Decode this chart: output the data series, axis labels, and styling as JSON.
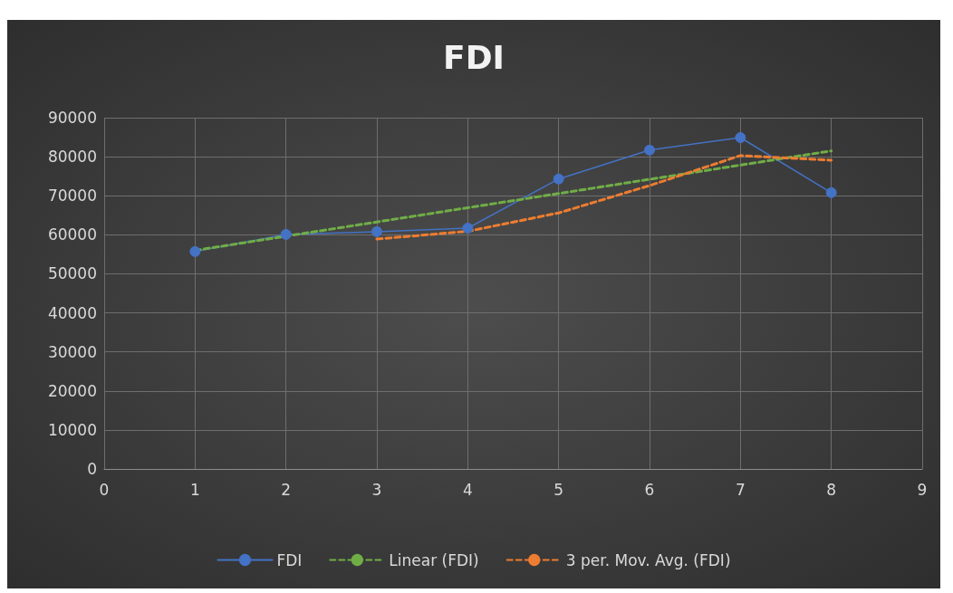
{
  "chart_data": {
    "type": "line",
    "title": "FDI",
    "series": [
      {
        "name": "FDI",
        "color": "#4472c4",
        "x": [
          1,
          2,
          3,
          4,
          5,
          6,
          7,
          8
        ],
        "values": [
          55700,
          60100,
          60800,
          61700,
          74300,
          81700,
          84900,
          70800
        ],
        "marker": "circle",
        "line_style": "solid"
      },
      {
        "name": "Linear (FDI)",
        "color": "#70ad47",
        "x": [
          1,
          8
        ],
        "values": [
          56000,
          81500
        ],
        "marker": "none",
        "line_style": "dashed"
      },
      {
        "name": "3 per. Mov. Avg. (FDI)",
        "color": "#ed7d31",
        "x": [
          3,
          4,
          5,
          6,
          7,
          8
        ],
        "values": [
          58900,
          60900,
          65600,
          72600,
          80300,
          79100
        ],
        "marker": "none",
        "line_style": "dashed"
      }
    ],
    "xlim": [
      0,
      9
    ],
    "xticks": [
      0,
      1,
      2,
      3,
      4,
      5,
      6,
      7,
      8,
      9
    ],
    "ylim": [
      0,
      90000
    ],
    "yticks": [
      0,
      10000,
      20000,
      30000,
      40000,
      50000,
      60000,
      70000,
      80000,
      90000
    ],
    "grid": true,
    "legend": "bottom"
  }
}
